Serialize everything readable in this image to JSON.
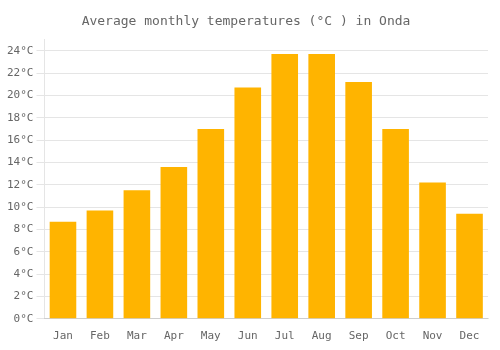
{
  "chart_data": {
    "type": "bar",
    "title": "Average monthly temperatures (°C ) in Onda",
    "categories": [
      "Jan",
      "Feb",
      "Mar",
      "Apr",
      "May",
      "Jun",
      "Jul",
      "Aug",
      "Sep",
      "Oct",
      "Nov",
      "Dec"
    ],
    "values": [
      8.7,
      9.7,
      11.5,
      13.6,
      17.0,
      20.7,
      23.7,
      23.7,
      21.2,
      17.0,
      12.2,
      9.4
    ],
    "color": "#FFB400",
    "ylim": [
      0,
      25
    ],
    "yticks": [
      {
        "value": 0,
        "label": "0°C"
      },
      {
        "value": 2,
        "label": "2°C"
      },
      {
        "value": 4,
        "label": "4°C"
      },
      {
        "value": 6,
        "label": "6°C"
      },
      {
        "value": 8,
        "label": "8°C"
      },
      {
        "value": 10,
        "label": "10°C"
      },
      {
        "value": 12,
        "label": "12°C"
      },
      {
        "value": 14,
        "label": "14°C"
      },
      {
        "value": 16,
        "label": "16°C"
      },
      {
        "value": 18,
        "label": "18°C"
      },
      {
        "value": 20,
        "label": "20°C"
      },
      {
        "value": 22,
        "label": "22°C"
      },
      {
        "value": 24,
        "label": "24°C"
      }
    ],
    "grid": true
  }
}
